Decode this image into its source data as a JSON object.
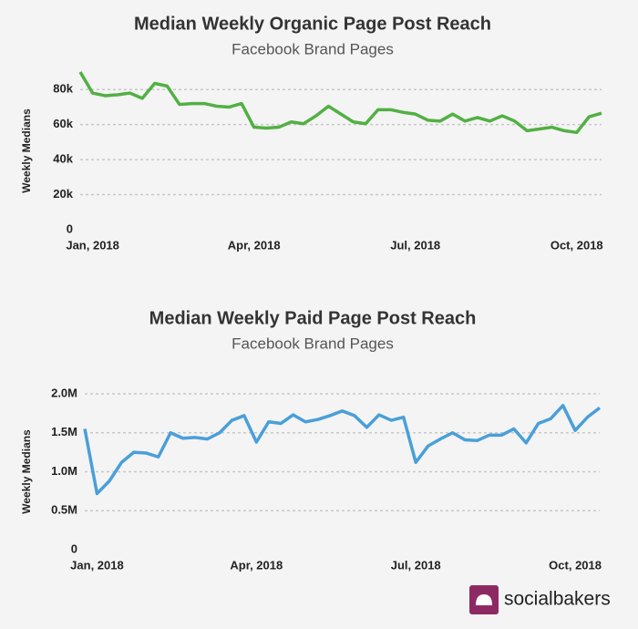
{
  "chart_data": [
    {
      "type": "line",
      "title": "Median Weekly Organic Page Post Reach",
      "subtitle": "Facebook Brand Pages",
      "y_label": "Weekly Medians",
      "categories": [
        null,
        "Jan, 2018",
        null,
        null,
        null,
        null,
        null,
        null,
        null,
        null,
        null,
        null,
        null,
        null,
        "Apr, 2018",
        null,
        null,
        null,
        null,
        null,
        null,
        null,
        null,
        null,
        null,
        null,
        null,
        "Jul, 2018",
        null,
        null,
        null,
        null,
        null,
        null,
        null,
        null,
        null,
        null,
        null,
        null,
        "Oct, 2018",
        null,
        null
      ],
      "series": [
        {
          "name": "Organic",
          "color": "#52b043",
          "values": [
            90000,
            78000,
            76500,
            77000,
            78000,
            75000,
            83500,
            82000,
            71500,
            72000,
            72000,
            70500,
            70000,
            72000,
            58500,
            58000,
            58500,
            61500,
            60500,
            65000,
            70500,
            66000,
            61500,
            60500,
            68500,
            68500,
            67000,
            66000,
            62500,
            62000,
            66000,
            62000,
            64000,
            62000,
            65000,
            62000,
            56500,
            57500,
            58500,
            56500,
            55500,
            64500,
            66500
          ]
        }
      ],
      "ylim": [
        0,
        90000
      ],
      "yticks": [
        0,
        {
          "value": 20000,
          "label": "20k"
        },
        {
          "value": 40000,
          "label": "40k"
        },
        {
          "value": 60000,
          "label": "60k"
        },
        {
          "value": 80000,
          "label": "80k"
        }
      ],
      "grid": true
    },
    {
      "type": "line",
      "title": "Median Weekly Paid Page Post Reach",
      "subtitle": "Facebook Brand Pages",
      "y_label": "Weekly Medians",
      "categories": [
        null,
        "Jan, 2018",
        null,
        null,
        null,
        null,
        null,
        null,
        null,
        null,
        null,
        null,
        null,
        null,
        "Apr, 2018",
        null,
        null,
        null,
        null,
        null,
        null,
        null,
        null,
        null,
        null,
        null,
        null,
        "Jul, 2018",
        null,
        null,
        null,
        null,
        null,
        null,
        null,
        null,
        null,
        null,
        null,
        null,
        "Oct, 2018",
        null,
        null
      ],
      "series": [
        {
          "name": "Paid",
          "color": "#4a9fd8",
          "values": [
            1550000,
            720000,
            880000,
            1120000,
            1250000,
            1240000,
            1190000,
            1500000,
            1430000,
            1440000,
            1420000,
            1500000,
            1660000,
            1720000,
            1380000,
            1640000,
            1620000,
            1730000,
            1640000,
            1670000,
            1720000,
            1780000,
            1720000,
            1570000,
            1730000,
            1660000,
            1700000,
            1120000,
            1330000,
            1420000,
            1500000,
            1410000,
            1400000,
            1470000,
            1470000,
            1550000,
            1370000,
            1620000,
            1680000,
            1850000,
            1530000,
            1700000,
            1820000
          ]
        }
      ],
      "ylim": [
        0,
        2000000
      ],
      "yticks": [
        0,
        {
          "value": 500000,
          "label": "0.5M"
        },
        {
          "value": 1000000,
          "label": "1.0M"
        },
        {
          "value": 1500000,
          "label": "1.5M"
        },
        {
          "value": 2000000,
          "label": "2.0M"
        }
      ],
      "grid": true
    }
  ],
  "brand": "socialbakers"
}
